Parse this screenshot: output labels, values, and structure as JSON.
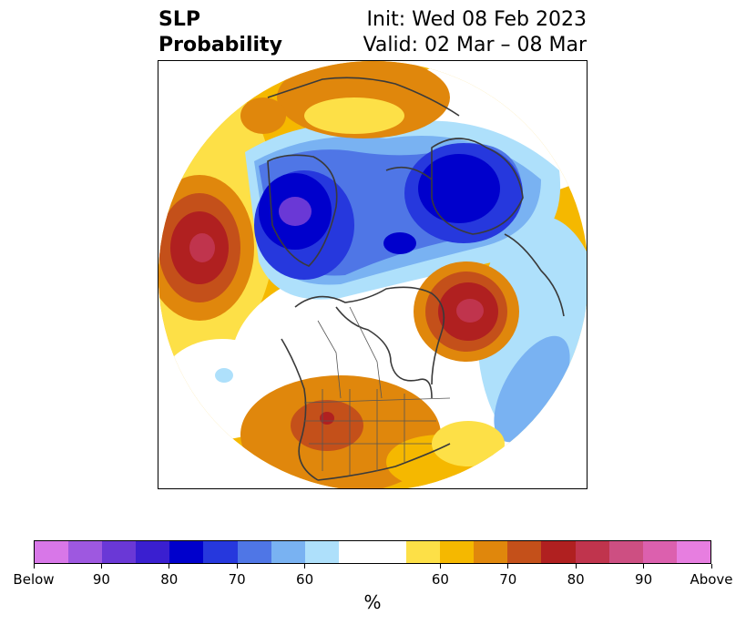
{
  "title": {
    "left_line1": "SLP",
    "left_line2": "Probability",
    "right_line1": "Init: Wed 08 Feb 2023",
    "right_line2": "Valid: 02 Mar – 08 Mar"
  },
  "colorbar": {
    "colors": [
      "#d877e8",
      "#9e58e0",
      "#6a38d6",
      "#3a1fd0",
      "#0000cc",
      "#2638dd",
      "#4f76e6",
      "#79b2f2",
      "#aee0fb",
      "#ffffff",
      "#ffffff",
      "#fde047",
      "#f5b800",
      "#e0870c",
      "#c4501a",
      "#b02020",
      "#c0344d",
      "#cd4f82",
      "#dc60ae",
      "#e77ee0"
    ],
    "tick_labels": [
      "Below",
      "90",
      "80",
      "70",
      "60",
      "60",
      "70",
      "80",
      "90",
      "Above"
    ],
    "unit": "%"
  },
  "map": {
    "description_icon": "probability-map",
    "colors": {
      "above_strong": "#b02020",
      "above_mid": "#c4501a",
      "above_orange": "#e0870c",
      "above_gold": "#f5b800",
      "above_yellow": "#fde047",
      "below_light": "#aee0fb",
      "below_sky": "#79b2f2",
      "below_med": "#4f76e6",
      "below_royal": "#2638dd",
      "below_deep": "#0000cc",
      "below_purple": "#6a38d6",
      "above_rose": "#c0344d"
    }
  }
}
